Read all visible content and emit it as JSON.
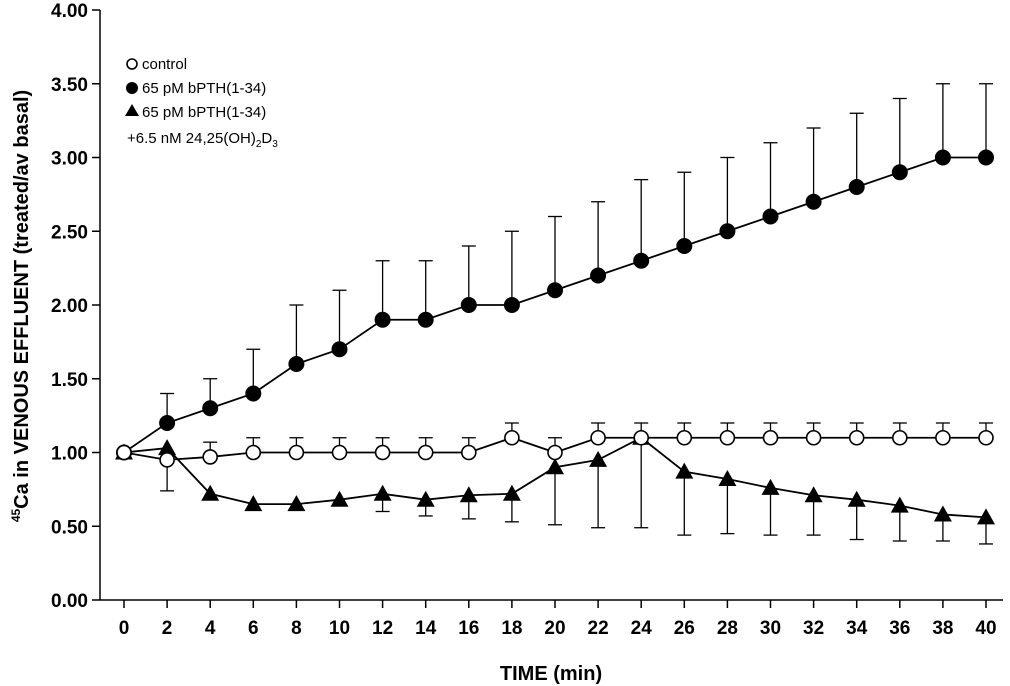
{
  "chart_data": {
    "type": "line",
    "title": "",
    "xlabel": "TIME (min)",
    "ylabel_sup": "45",
    "ylabel": "Ca in VENOUS EFFLUENT (treated/av basal)",
    "xlim": [
      0,
      40
    ],
    "ylim": [
      0,
      4
    ],
    "x_ticks": [
      "0",
      "2",
      "4",
      "6",
      "8",
      "10",
      "12",
      "14",
      "16",
      "18",
      "20",
      "22",
      "24",
      "26",
      "28",
      "30",
      "32",
      "34",
      "36",
      "38",
      "40"
    ],
    "y_ticks": [
      "0.00",
      "0.50",
      "1.00",
      "1.50",
      "2.00",
      "2.50",
      "3.00",
      "3.50",
      "4.00"
    ],
    "grid": false,
    "legend_position": "top-left",
    "legend_extra_line": {
      "prefix": "+6.5 nM 24,25(OH)",
      "sub1": "2",
      "mid": "D",
      "sub2": "3"
    },
    "series": [
      {
        "name": "control",
        "marker": "circle-open",
        "x": [
          0,
          2,
          4,
          6,
          8,
          10,
          12,
          14,
          16,
          18,
          20,
          22,
          24,
          26,
          28,
          30,
          32,
          34,
          36,
          38,
          40
        ],
        "y": [
          1.0,
          0.95,
          0.97,
          1.0,
          1.0,
          1.0,
          1.0,
          1.0,
          1.0,
          1.1,
          1.0,
          1.1,
          1.1,
          1.1,
          1.1,
          1.1,
          1.1,
          1.1,
          1.1,
          1.1,
          1.1
        ],
        "error_upper": [
          null,
          null,
          1.07,
          1.1,
          1.1,
          1.1,
          1.1,
          1.1,
          1.1,
          1.2,
          1.1,
          1.2,
          1.2,
          1.2,
          1.2,
          1.2,
          1.2,
          1.2,
          1.2,
          1.2,
          1.2
        ]
      },
      {
        "name": "65 pM bPTH(1-34)",
        "marker": "circle-filled",
        "x": [
          0,
          2,
          4,
          6,
          8,
          10,
          12,
          14,
          16,
          18,
          20,
          22,
          24,
          26,
          28,
          30,
          32,
          34,
          36,
          38,
          40
        ],
        "y": [
          1.0,
          1.2,
          1.3,
          1.4,
          1.6,
          1.7,
          1.9,
          1.9,
          2.0,
          2.0,
          2.1,
          2.2,
          2.3,
          2.4,
          2.5,
          2.6,
          2.7,
          2.8,
          2.9,
          3.0,
          3.0
        ],
        "error_upper": [
          null,
          1.4,
          1.5,
          1.7,
          2.0,
          2.1,
          2.3,
          2.3,
          2.4,
          2.5,
          2.6,
          2.7,
          2.85,
          2.9,
          3.0,
          3.1,
          3.2,
          3.3,
          3.4,
          3.5,
          3.5
        ]
      },
      {
        "name": "65 pM bPTH(1-34)",
        "marker": "triangle-filled",
        "x": [
          0,
          2,
          4,
          6,
          8,
          10,
          12,
          14,
          16,
          18,
          20,
          22,
          24,
          26,
          28,
          30,
          32,
          34,
          36,
          38,
          40
        ],
        "y": [
          1.0,
          1.03,
          0.72,
          0.65,
          0.65,
          0.68,
          0.72,
          0.68,
          0.71,
          0.72,
          0.9,
          0.95,
          1.1,
          0.87,
          0.82,
          0.76,
          0.71,
          0.68,
          0.64,
          0.58,
          0.56
        ],
        "error_lower": [
          null,
          0.74,
          null,
          null,
          null,
          null,
          0.6,
          0.57,
          0.55,
          0.53,
          0.51,
          0.49,
          0.49,
          0.44,
          0.45,
          0.44,
          0.44,
          0.41,
          0.4,
          0.4,
          0.38
        ]
      }
    ]
  }
}
